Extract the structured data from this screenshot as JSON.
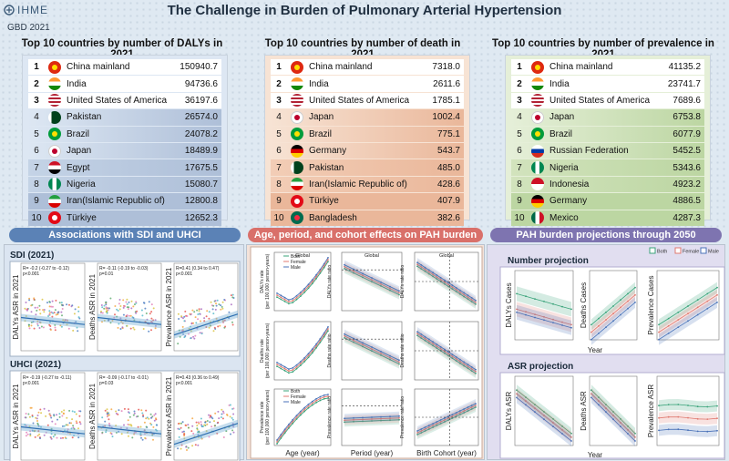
{
  "header": {
    "logo": "IHME",
    "gbd": "GBD 2021",
    "title": "The Challenge in Burden of Pulmonary Arterial Hypertension"
  },
  "tables": [
    {
      "title": "Top 10 countries by number of DALYs in 2021",
      "rows": [
        {
          "rank": "1",
          "country": "China mainland",
          "value": "150940.7"
        },
        {
          "rank": "2",
          "country": "India",
          "value": "94736.6"
        },
        {
          "rank": "3",
          "country": "United States of America",
          "value": "36197.6"
        },
        {
          "rank": "4",
          "country": "Pakistan",
          "value": "26574.0"
        },
        {
          "rank": "5",
          "country": "Brazil",
          "value": "24078.2"
        },
        {
          "rank": "6",
          "country": "Japan",
          "value": "18489.9"
        },
        {
          "rank": "7",
          "country": "Egypt",
          "value": "17675.5"
        },
        {
          "rank": "8",
          "country": "Nigeria",
          "value": "15080.7"
        },
        {
          "rank": "9",
          "country": "Iran(Islamic Republic of)",
          "value": "12800.8"
        },
        {
          "rank": "10",
          "country": "Türkiye",
          "value": "12652.3"
        }
      ]
    },
    {
      "title": "Top 10 countries by number of death in 2021",
      "rows": [
        {
          "rank": "1",
          "country": "China mainland",
          "value": "7318.0"
        },
        {
          "rank": "2",
          "country": "India",
          "value": "2611.6"
        },
        {
          "rank": "3",
          "country": "United States of America",
          "value": "1785.1"
        },
        {
          "rank": "4",
          "country": "Japan",
          "value": "1002.4"
        },
        {
          "rank": "5",
          "country": "Brazil",
          "value": "775.1"
        },
        {
          "rank": "6",
          "country": "Germany",
          "value": "543.7"
        },
        {
          "rank": "7",
          "country": "Pakistan",
          "value": "485.0"
        },
        {
          "rank": "8",
          "country": "Iran(Islamic Republic of)",
          "value": "428.6"
        },
        {
          "rank": "9",
          "country": "Türkiye",
          "value": "407.9"
        },
        {
          "rank": "10",
          "country": "Bangladesh",
          "value": "382.6"
        }
      ]
    },
    {
      "title": "Top 10 countries by number of prevalence in 2021",
      "rows": [
        {
          "rank": "1",
          "country": "China mainland",
          "value": "41135.2"
        },
        {
          "rank": "2",
          "country": "India",
          "value": "23741.7"
        },
        {
          "rank": "3",
          "country": "United States of America",
          "value": "7689.6"
        },
        {
          "rank": "4",
          "country": "Japan",
          "value": "6753.8"
        },
        {
          "rank": "5",
          "country": "Brazil",
          "value": "6077.9"
        },
        {
          "rank": "6",
          "country": "Russian Federation",
          "value": "5452.5"
        },
        {
          "rank": "7",
          "country": "Nigeria",
          "value": "5343.6"
        },
        {
          "rank": "8",
          "country": "Indonesia",
          "value": "4923.2"
        },
        {
          "rank": "9",
          "country": "Germany",
          "value": "4886.5"
        },
        {
          "rank": "10",
          "country": "Mexico",
          "value": "4287.3"
        }
      ]
    }
  ],
  "sections": {
    "sdi": "Associations with SDI and UHCI",
    "apc": "Age, period, and cohort effects on PAH burden",
    "proj": "PAH burden projections through 2050"
  },
  "sdi_panel": {
    "sdi_title": "SDI (2021)",
    "uhci_title": "UHCI (2021)",
    "sdi_plots": [
      {
        "ylabel": "DALYs ASR in 2021",
        "stat1": "R= -0.2 (-0.27 to -0.12)",
        "stat2": "p<0.001"
      },
      {
        "ylabel": "Deaths ASR in 2021",
        "stat1": "R= -0.11 (-0.19 to -0.03)",
        "stat2": "p=0.01"
      },
      {
        "ylabel": "Prevalence ASR in 2021",
        "stat1": "R=0.41 (0.34 to 0.47)",
        "stat2": "p<0.001"
      }
    ],
    "uhci_plots": [
      {
        "ylabel": "DALYs ASR in 2021",
        "stat1": "R= -0.19 (-0.27 to -0.11)",
        "stat2": "p<0.001"
      },
      {
        "ylabel": "Deaths ASR in 2021",
        "stat1": "R= -0.09 (-0.17 to -0.01)",
        "stat2": "p=0.03"
      },
      {
        "ylabel": "Prevalence ASR in 2021",
        "stat1": "R=0.43 (0.36 to 0.49)",
        "stat2": "p<0.001"
      }
    ]
  },
  "apc_panel": {
    "global": "Global",
    "legend": [
      "Both",
      "Female",
      "Male"
    ],
    "row_labels": [
      "DALYs rate\n(per 100,000 person-years)",
      "Deaths rate\n(per 100,000 person-years)",
      "Prevalence rate\n(per 100,000 person-years)"
    ],
    "period_labels": [
      "DALYs rate ratio",
      "Deaths rate ratio",
      "Prevalence rate ratio"
    ],
    "cohort_labels": [
      "DALYs rate ratio",
      "Deaths rate ratio",
      "Prevalence rate ratio"
    ],
    "xlabels": [
      "Age (year)",
      "Period (year)",
      "Birth Cohort   (year)"
    ]
  },
  "proj_panel": {
    "legend": [
      "Both",
      "Female",
      "Male"
    ],
    "number_title": "Number projection",
    "asr_title": "ASR projection",
    "number_ylabels": [
      "DALYs Cases",
      "Deaths Cases",
      "Prevalence Cases"
    ],
    "asr_ylabels": [
      "DALYs ASR",
      "Deaths ASR",
      "Prevalence ASR"
    ],
    "xlabel": "Year"
  },
  "colors": {
    "dalys_bg": "#dde7f3",
    "death_bg": "#f7e3d4",
    "prev_bg": "#e5efd8",
    "sec_blue": "#5b82b6",
    "sec_red": "#d9706a",
    "sec_purple": "#7e74b0",
    "both": "#3aa37a",
    "female": "#e07a70",
    "male": "#4a72b8"
  }
}
